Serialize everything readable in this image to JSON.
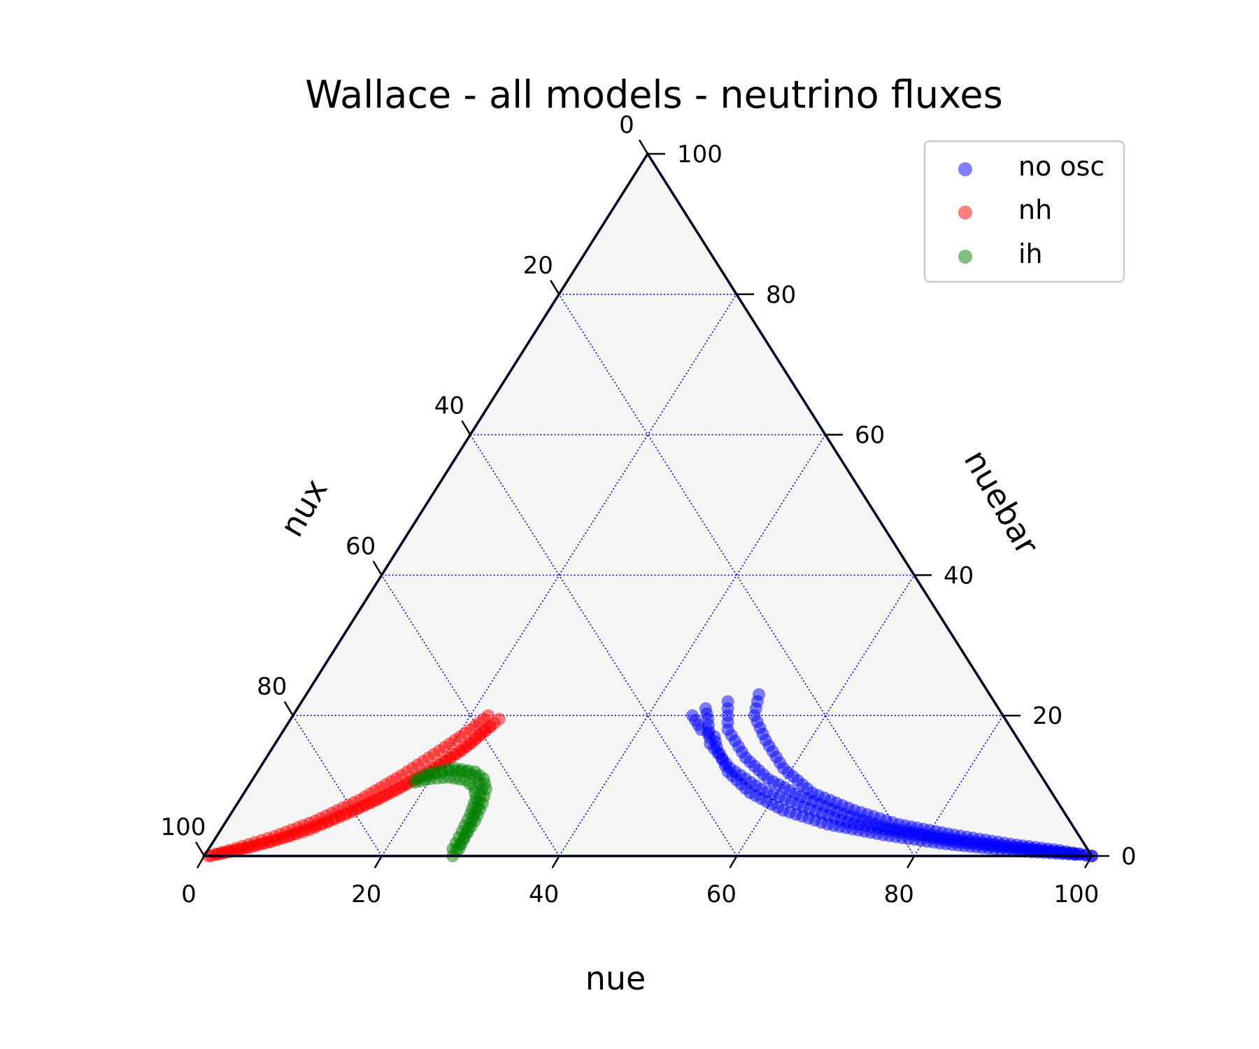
{
  "chart_data": {
    "type": "scatter",
    "subtype": "ternary",
    "title": "Wallace - all models - neutrino fluxes",
    "axes": {
      "bottom": {
        "label": "nue",
        "ticks": [
          "0",
          "20",
          "40",
          "60",
          "80",
          "100"
        ]
      },
      "right": {
        "label": "nuebar",
        "ticks": [
          "0",
          "20",
          "40",
          "60",
          "80",
          "100"
        ]
      },
      "left": {
        "label": "nux",
        "ticks": [
          "0",
          "20",
          "40",
          "60",
          "80",
          "100"
        ]
      }
    },
    "scale": [
      0,
      100
    ],
    "grid": true,
    "grid_color": "#0000cc",
    "background": "#f5f5f5",
    "legend": {
      "placement": "top-right",
      "entries": [
        {
          "label": "no osc",
          "color": "#0000ff"
        },
        {
          "label": "nh",
          "color": "#ff0000"
        },
        {
          "label": "ih",
          "color": "#008000"
        }
      ]
    },
    "series": [
      {
        "name": "no osc",
        "color": "#0000ff",
        "tracks": [
          [
            [
              51,
              23
            ],
            [
              52,
              20
            ],
            [
              55,
              16.5
            ],
            [
              59,
              12.5
            ],
            [
              64,
              9
            ],
            [
              70,
              6.5
            ],
            [
              76,
              4.5
            ],
            [
              83,
              3
            ],
            [
              90,
              1.7
            ],
            [
              96,
              0.8
            ],
            [
              100,
              0
            ]
          ],
          [
            [
              48,
              22
            ],
            [
              50,
              18
            ],
            [
              54,
              14
            ],
            [
              58,
              11
            ],
            [
              63,
              8.5
            ],
            [
              69,
              6
            ],
            [
              75,
              4
            ],
            [
              82,
              2.6
            ],
            [
              89,
              1.5
            ],
            [
              95,
              0.7
            ],
            [
              100,
              0
            ]
          ],
          [
            [
              46,
              21
            ],
            [
              47,
              19.5
            ],
            [
              49,
              16
            ],
            [
              53,
              12.5
            ],
            [
              58,
              9.5
            ],
            [
              64,
              7
            ],
            [
              70,
              4.8
            ],
            [
              77,
              3.3
            ],
            [
              84,
              2
            ],
            [
              91,
              1
            ],
            [
              98,
              0.3
            ]
          ],
          [
            [
              45,
              20
            ],
            [
              47,
              18
            ],
            [
              49,
              17
            ],
            [
              50,
              15.5
            ],
            [
              53,
              12
            ],
            [
              57,
              9
            ],
            [
              62,
              6.5
            ],
            [
              68,
              4.5
            ],
            [
              75,
              3
            ],
            [
              82,
              1.8
            ],
            [
              90,
              0.8
            ],
            [
              98,
              0.2
            ]
          ]
        ]
      },
      {
        "name": "nh",
        "color": "#ff0000",
        "tracks": [
          [
            [
              22,
              20
            ],
            [
              21,
              18
            ],
            [
              19,
              15
            ],
            [
              16.5,
              11.5
            ],
            [
              13.5,
              8
            ],
            [
              10,
              5
            ],
            [
              6.5,
              2.8
            ],
            [
              3,
              1.1
            ],
            [
              0.5,
              0
            ]
          ],
          [
            [
              23.5,
              19.5
            ],
            [
              22,
              16
            ],
            [
              20,
              13
            ],
            [
              17,
              9.5
            ],
            [
              13.5,
              6.3
            ],
            [
              10,
              3.7
            ],
            [
              6.5,
              2
            ],
            [
              3,
              0.8
            ],
            [
              0.8,
              0
            ]
          ],
          [
            [
              23,
              18.5
            ],
            [
              21.5,
              15
            ],
            [
              19,
              11.5
            ],
            [
              15.5,
              8
            ],
            [
              11.5,
              5
            ],
            [
              8,
              2.8
            ],
            [
              4.5,
              1.2
            ],
            [
              1.5,
              0.3
            ]
          ]
        ]
      },
      {
        "name": "ih",
        "color": "#008000",
        "tracks": [
          [
            [
              18.5,
              11
            ],
            [
              20,
              12
            ],
            [
              22,
              12.5
            ],
            [
              24.5,
              12
            ],
            [
              26,
              11
            ],
            [
              27,
              9.5
            ],
            [
              27.6,
              7.5
            ],
            [
              28,
              5
            ],
            [
              28,
              2.5
            ],
            [
              28,
              0
            ]
          ],
          [
            [
              18.5,
              10.5
            ],
            [
              20,
              11
            ],
            [
              22,
              11.2
            ],
            [
              24,
              10.8
            ],
            [
              25.5,
              9.8
            ],
            [
              26.5,
              8.2
            ],
            [
              27,
              6
            ],
            [
              27.3,
              3.5
            ],
            [
              27.5,
              1
            ]
          ],
          [
            [
              19.5,
              11.5
            ],
            [
              21.5,
              12.2
            ],
            [
              23.5,
              12
            ],
            [
              25,
              11.3
            ],
            [
              26.5,
              9.5
            ],
            [
              27.3,
              7
            ],
            [
              27.8,
              4
            ],
            [
              28.2,
              1
            ]
          ]
        ]
      }
    ]
  }
}
